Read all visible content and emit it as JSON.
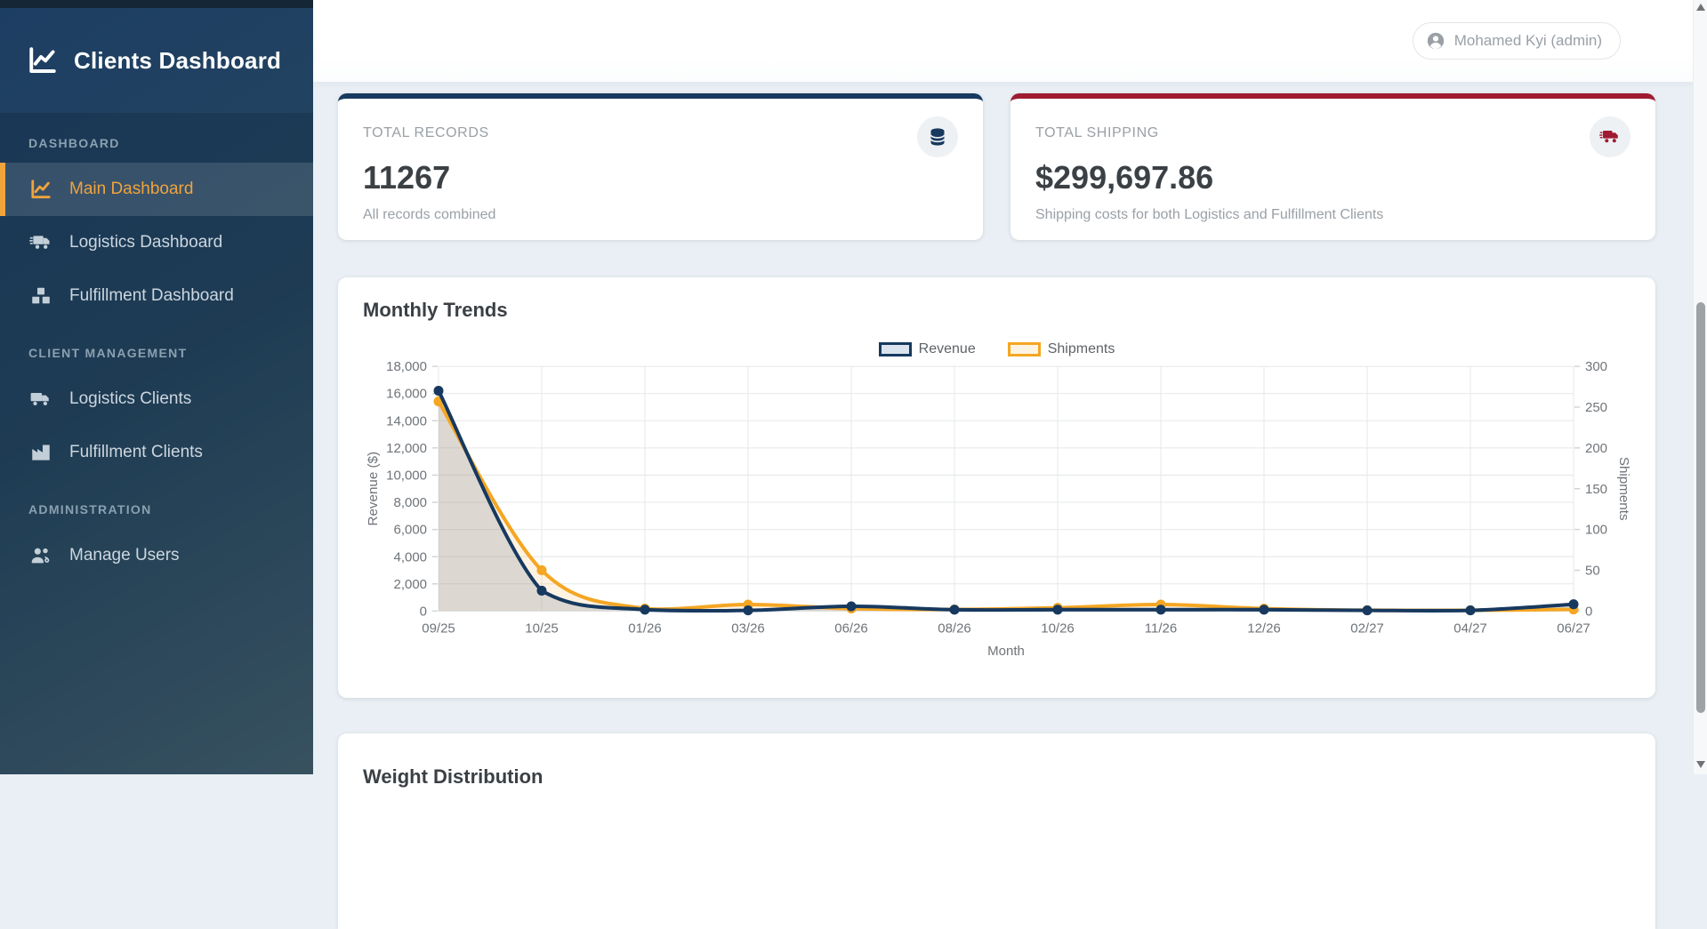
{
  "app": {
    "title": "Clients Dashboard"
  },
  "topbar": {
    "user": "Mohamed Kyi (admin)"
  },
  "sidebar": {
    "sections": [
      {
        "label": "DASHBOARD",
        "items": [
          {
            "label": "Main Dashboard",
            "icon": "chart-line-icon",
            "active": true
          },
          {
            "label": "Logistics Dashboard",
            "icon": "truck-fast-icon",
            "active": false
          },
          {
            "label": "Fulfillment Dashboard",
            "icon": "boxes-icon",
            "active": false
          }
        ]
      },
      {
        "label": "CLIENT MANAGEMENT",
        "items": [
          {
            "label": "Logistics Clients",
            "icon": "truck-icon",
            "active": false
          },
          {
            "label": "Fulfillment Clients",
            "icon": "industry-icon",
            "active": false
          }
        ]
      },
      {
        "label": "ADMINISTRATION",
        "items": [
          {
            "label": "Manage Users",
            "icon": "users-gear-icon",
            "active": false
          }
        ]
      }
    ]
  },
  "stats": [
    {
      "label": "TOTAL RECORDS",
      "value": "11267",
      "caption": "All records combined",
      "icon": "database-icon",
      "accent": "#17395f",
      "icon_color": "#17395f"
    },
    {
      "label": "TOTAL SHIPPING",
      "value": "$299,697.86",
      "caption": "Shipping costs for both Logistics and Fulfillment Clients",
      "icon": "truck-icon",
      "accent": "#9e1b32",
      "icon_color": "#9e1b32"
    }
  ],
  "chart_card": {
    "title": "Monthly Trends"
  },
  "chart_data": {
    "type": "line",
    "title": "Monthly Trends",
    "x": [
      "09/25",
      "10/25",
      "01/26",
      "03/26",
      "06/26",
      "08/26",
      "10/26",
      "11/26",
      "12/26",
      "02/27",
      "04/27",
      "06/27"
    ],
    "xlabel": "Month",
    "grid": true,
    "legend_position": "top-center",
    "series": [
      {
        "name": "Shipments",
        "axis": "right",
        "color": "#f5a623",
        "fill": "rgba(245,166,35,0.13)",
        "swatch_fill": "#fdf3e3",
        "values": [
          257,
          50,
          3,
          8,
          3,
          2,
          4,
          8,
          3,
          1,
          1,
          2
        ]
      },
      {
        "name": "Revenue",
        "axis": "left",
        "color": "#17395f",
        "fill": "rgba(100,125,145,0.22)",
        "swatch_fill": "#dbe4ec",
        "values": [
          16200,
          1500,
          100,
          50,
          350,
          100,
          100,
          100,
          100,
          50,
          50,
          500
        ]
      }
    ],
    "left_axis": {
      "label": "Revenue ($)",
      "min": 0,
      "max": 18000,
      "ticks": [
        "18,000",
        "16,000",
        "14,000",
        "12,000",
        "10,000",
        "8,000",
        "6,000",
        "4,000",
        "2,000",
        "0"
      ]
    },
    "right_axis": {
      "label": "Shipments",
      "min": 0,
      "max": 300,
      "ticks": [
        "300",
        "250",
        "200",
        "150",
        "100",
        "50",
        "0"
      ]
    }
  },
  "bottom_card": {
    "title": "Weight Distribution"
  }
}
